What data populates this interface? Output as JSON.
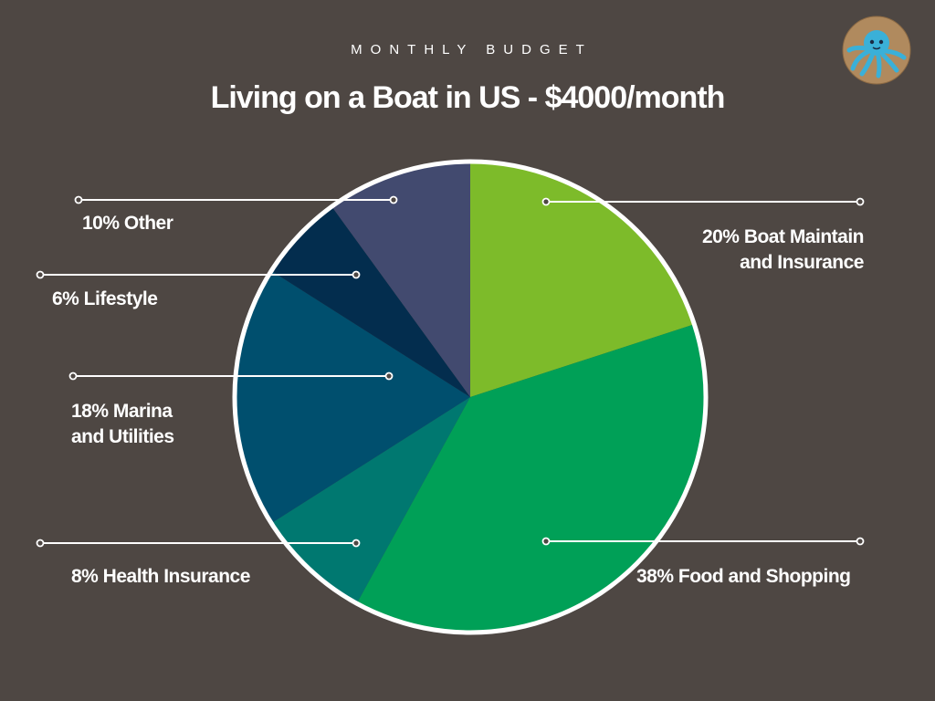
{
  "header": {
    "subtitle": "MONTHLY BUDGET",
    "title": "Living on a Boat in US - $4000/month"
  },
  "chart_data": {
    "type": "pie",
    "title": "Living on a Boat in US - $4000/month",
    "slices": [
      {
        "label_line1": "20% Boat Maintain",
        "label_line2": "and  Insurance",
        "value": 20,
        "color": "#7dbb2a"
      },
      {
        "label_line1": "38% Food and Shopping",
        "label_line2": "",
        "value": 38,
        "color": "#00a057"
      },
      {
        "label_line1": "8% Health Insurance",
        "label_line2": "",
        "value": 8,
        "color": "#007870"
      },
      {
        "label_line1": "18% Marina",
        "label_line2": "and Utilities",
        "value": 18,
        "color": "#004f6e"
      },
      {
        "label_line1": "6% Lifestyle",
        "label_line2": "",
        "value": 6,
        "color": "#032d4e"
      },
      {
        "label_line1": "10% Other",
        "label_line2": "",
        "value": 10,
        "color": "#424a6f"
      }
    ]
  },
  "colors": {
    "background": "#4e4743",
    "text": "#ffffff",
    "outline": "#ffffff"
  },
  "avatar": {
    "icon": "octopus-icon"
  }
}
